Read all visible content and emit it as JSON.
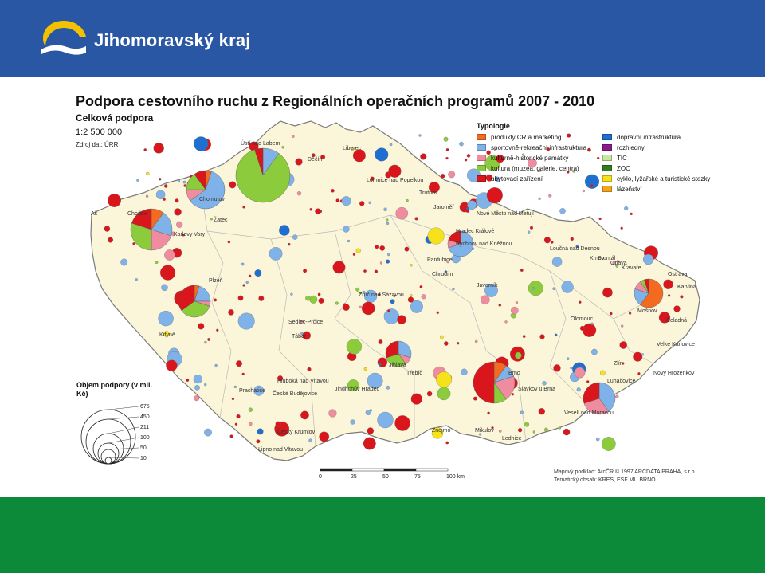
{
  "brand": {
    "name": "Jihomoravský kraj",
    "colors": {
      "band_top": "#2a57a3",
      "band_bottom": "#0c8a3a",
      "logo_yellow": "#f2c200"
    }
  },
  "title": "Podpora cestovního ruchu z Regionálních operačních programů 2007 - 2010",
  "subtitle": "Celková podpora",
  "scale": "1:2 500 000",
  "source": "Zdroj dat: ÚRR",
  "legend": {
    "title": "Typologie",
    "items": [
      {
        "label": "produkty CR a marketing",
        "color": "#f26b21"
      },
      {
        "label": "dopravní infrastruktura",
        "color": "#1f6fd1"
      },
      {
        "label": "sportovně-rekreační infrastruktura",
        "color": "#7fb2e8"
      },
      {
        "label": "rozhledny",
        "color": "#8b1a8b"
      },
      {
        "label": "kulturně-historické památky",
        "color": "#f08ca0"
      },
      {
        "label": "TIC",
        "color": "#c8e6a0"
      },
      {
        "label": "kultura (muzea, galerie, centra)",
        "color": "#8ccc3c"
      },
      {
        "label": "ZOO",
        "color": "#2e7d1e"
      },
      {
        "label": "ubytovací zařízení",
        "color": "#d9161c"
      },
      {
        "label": "cyklo, lyžařské a turistické stezky",
        "color": "#f5e21a"
      },
      {
        "label": "",
        "color": ""
      },
      {
        "label": "lázeňství",
        "color": "#f4a51c"
      }
    ]
  },
  "size_legend": {
    "title": "Objem podpory (v mil. Kč)",
    "values": [
      "675",
      "450",
      "211",
      "100",
      "50",
      "10"
    ]
  },
  "scalebar": {
    "ticks": [
      "0",
      "25",
      "50",
      "75",
      "100 km"
    ]
  },
  "credits": [
    "Mapový podklad: ArcČR © 1997 ARCDATA PRAHA, s.r.o.",
    "Tematický obsah: KRES, ESF MU BRNO"
  ],
  "places": [
    "Ústí nad Labem",
    "Liberec",
    "Děčín",
    "Chomutov",
    "Žatec",
    "Karlovy Vary",
    "Chodov",
    "Aš",
    "Plzeň",
    "Sedlec-Prčice",
    "Tábor",
    "Prachatice",
    "České Budějovice",
    "Český Krumlov",
    "Lipno nad Vltavou",
    "Hluboká nad Vltavou",
    "Jindřichův Hradec",
    "Jihlava",
    "Třebíč",
    "Znojmo",
    "Mikulov",
    "Lednice",
    "Brno",
    "Slavkov u Brna",
    "Luhačovice",
    "Zlín",
    "Olomouc",
    "Ostrava",
    "Opava",
    "Loučná nad Desnou",
    "Hradec Králové",
    "Pardubice",
    "Chrudim",
    "Trutnov",
    "Rychnov nad Kněžnou",
    "Zruč nad Sázavou",
    "Kdyně",
    "Velké Karlovice",
    "Nový Hrozenkov",
    "Veselí nad Moravou",
    "Kravaře",
    "Lomnice nad Popelkou",
    "Jaroměř",
    "Nové Město nad Metují",
    "Krnov",
    "Mošnov",
    "Čeladná",
    "Karviná",
    "Bruntál",
    "Javorník"
  ],
  "pies": [
    {
      "v": [
        0,
        0,
        10,
        0,
        0,
        0,
        85,
        5
      ],
      "label": "Ústí nad Labem"
    },
    {
      "v": [
        5,
        0,
        60,
        0,
        10,
        0,
        15,
        10
      ],
      "label": "Chomutov"
    },
    {
      "v": [
        10,
        0,
        20,
        0,
        20,
        0,
        30,
        20
      ],
      "label": "Karlovy Vary"
    },
    {
      "v": [
        5,
        0,
        20,
        0,
        5,
        0,
        35,
        35
      ],
      "label": "Plzeň"
    },
    {
      "v": [
        10,
        0,
        10,
        0,
        20,
        0,
        10,
        50
      ],
      "label": "Brno"
    },
    {
      "v": [
        60,
        0,
        20,
        0,
        10,
        0,
        5,
        5
      ],
      "label": "Ostrava"
    },
    {
      "v": [
        0,
        0,
        40,
        0,
        30,
        0,
        0,
        30
      ],
      "label": "Luhačovice"
    },
    {
      "v": [
        0,
        0,
        70,
        0,
        10,
        0,
        0,
        20
      ],
      "label": "Rychnov nad Kněžnou"
    },
    {
      "v": [
        0,
        0,
        30,
        0,
        10,
        0,
        30,
        30
      ],
      "label": "Jihlava"
    }
  ]
}
